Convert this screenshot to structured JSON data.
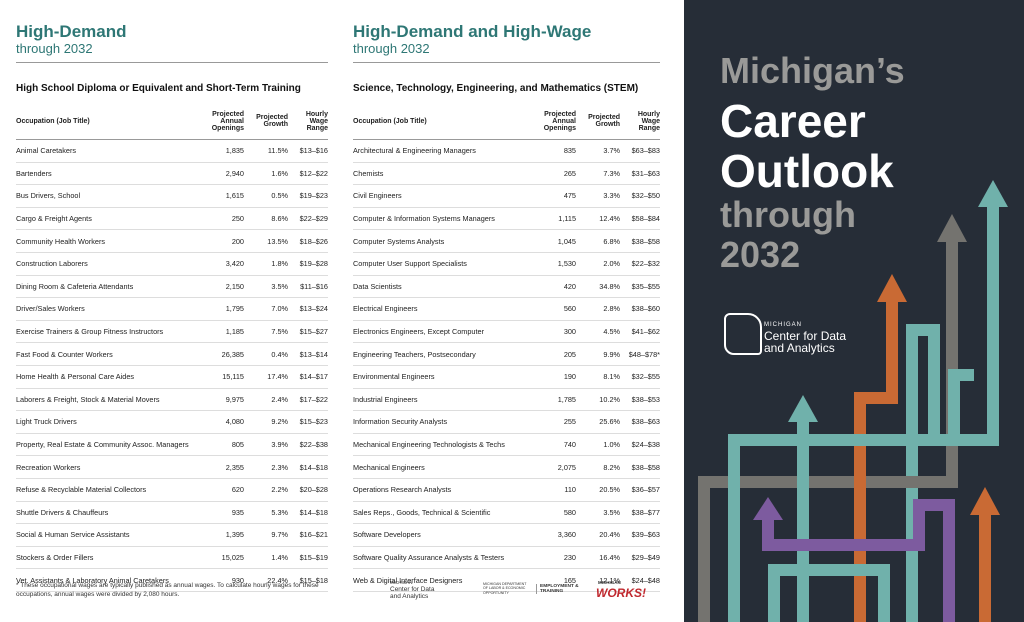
{
  "left": {
    "title": "High-Demand",
    "subtitle": "through 2032",
    "section": "High School Diploma or Equivalent and Short-Term Training",
    "headers": [
      "Occupation (Job Title)",
      "Projected Annual Openings",
      "Projected Growth",
      "Hourly Wage Range"
    ],
    "rows": [
      [
        "Animal Caretakers",
        "1,835",
        "11.5%",
        "$13–$16"
      ],
      [
        "Bartenders",
        "2,940",
        "1.6%",
        "$12–$22"
      ],
      [
        "Bus Drivers, School",
        "1,615",
        "0.5%",
        "$19–$23"
      ],
      [
        "Cargo & Freight Agents",
        "250",
        "8.6%",
        "$22–$29"
      ],
      [
        "Community Health Workers",
        "200",
        "13.5%",
        "$18–$26"
      ],
      [
        "Construction Laborers",
        "3,420",
        "1.8%",
        "$19–$28"
      ],
      [
        "Dining Room & Cafeteria Attendants",
        "2,150",
        "3.5%",
        "$11–$16"
      ],
      [
        "Driver/Sales Workers",
        "1,795",
        "7.0%",
        "$13–$24"
      ],
      [
        "Exercise Trainers & Group Fitness Instructors",
        "1,185",
        "7.5%",
        "$15–$27"
      ],
      [
        "Fast Food & Counter Workers",
        "26,385",
        "0.4%",
        "$13–$14"
      ],
      [
        "Home Health & Personal Care Aides",
        "15,115",
        "17.4%",
        "$14–$17"
      ],
      [
        "Laborers & Freight, Stock & Material Movers",
        "9,975",
        "2.4%",
        "$17–$22"
      ],
      [
        "Light Truck Drivers",
        "4,080",
        "9.2%",
        "$15–$23"
      ],
      [
        "Property, Real Estate & Community Assoc. Managers",
        "805",
        "3.9%",
        "$22–$38"
      ],
      [
        "Recreation Workers",
        "2,355",
        "2.3%",
        "$14–$18"
      ],
      [
        "Refuse & Recyclable Material Collectors",
        "620",
        "2.2%",
        "$20–$28"
      ],
      [
        "Shuttle Drivers & Chauffeurs",
        "935",
        "5.3%",
        "$14–$18"
      ],
      [
        "Social & Human Service Assistants",
        "1,395",
        "9.7%",
        "$16–$21"
      ],
      [
        "Stockers & Order Fillers",
        "15,025",
        "1.4%",
        "$15–$19"
      ],
      [
        "Vet. Assistants & Laboratory Animal Caretakers",
        "930",
        "22.4%",
        "$15–$18"
      ]
    ]
  },
  "right": {
    "title": "High-Demand and High-Wage",
    "subtitle": "through 2032",
    "section": "Science, Technology, Engineering, and Mathematics (STEM)",
    "headers": [
      "Occupation (Job Title)",
      "Projected Annual Openings",
      "Projected Growth",
      "Hourly Wage Range"
    ],
    "rows": [
      [
        "Architectural & Engineering Managers",
        "835",
        "3.7%",
        "$63–$83"
      ],
      [
        "Chemists",
        "265",
        "7.3%",
        "$31–$63"
      ],
      [
        "Civil Engineers",
        "475",
        "3.3%",
        "$32–$50"
      ],
      [
        "Computer & Information Systems Managers",
        "1,115",
        "12.4%",
        "$58–$84"
      ],
      [
        "Computer Systems Analysts",
        "1,045",
        "6.8%",
        "$38–$58"
      ],
      [
        "Computer User Support Specialists",
        "1,530",
        "2.0%",
        "$22–$32"
      ],
      [
        "Data Scientists",
        "420",
        "34.8%",
        "$35–$55"
      ],
      [
        "Electrical Engineers",
        "560",
        "2.8%",
        "$38–$60"
      ],
      [
        "Electronics Engineers, Except Computer",
        "300",
        "4.5%",
        "$41–$62"
      ],
      [
        "Engineering Teachers, Postsecondary",
        "205",
        "9.9%",
        "$48–$78*"
      ],
      [
        "Environmental Engineers",
        "190",
        "8.1%",
        "$32–$55"
      ],
      [
        "Industrial Engineers",
        "1,785",
        "10.2%",
        "$38–$53"
      ],
      [
        "Information Security Analysts",
        "255",
        "25.6%",
        "$38–$63"
      ],
      [
        "Mechanical Engineering Technologists & Techs",
        "740",
        "1.0%",
        "$24–$38"
      ],
      [
        "Mechanical Engineers",
        "2,075",
        "8.2%",
        "$38–$58"
      ],
      [
        "Operations Research Analysts",
        "110",
        "20.5%",
        "$36–$57"
      ],
      [
        "Sales Reps., Goods, Technical & Scientific",
        "580",
        "3.5%",
        "$38–$77"
      ],
      [
        "Software Developers",
        "3,360",
        "20.4%",
        "$39–$63"
      ],
      [
        "Software Quality Assurance Analysts & Testers",
        "230",
        "16.4%",
        "$29–$49"
      ],
      [
        "Web & Digital Interface Designers",
        "165",
        "12.1%",
        "$24–$48"
      ]
    ]
  },
  "footnote": "* These occupational wages are typically published as annual wages. To calculate hourly wages for these occupations, annual wages were divided by 2,080 hours.",
  "footer_logos": {
    "cda_small": "MICHIGAN",
    "cda_name": "Center for Data and Analytics",
    "leo": "MICHIGAN DEPARTMENT OF LABOR & ECONOMIC OPPORTUNITY",
    "et": "EMPLOYMENT & TRAINING",
    "mw_top": "MICHIGAN",
    "mw": "WORKS!"
  },
  "panel": {
    "title_lines": [
      "Michigan’s",
      "Career",
      "Outlook",
      "through",
      "2032"
    ],
    "logo_small": "MICHIGAN",
    "logo_name_1": "Center for Data",
    "logo_name_2": "and Analytics"
  }
}
